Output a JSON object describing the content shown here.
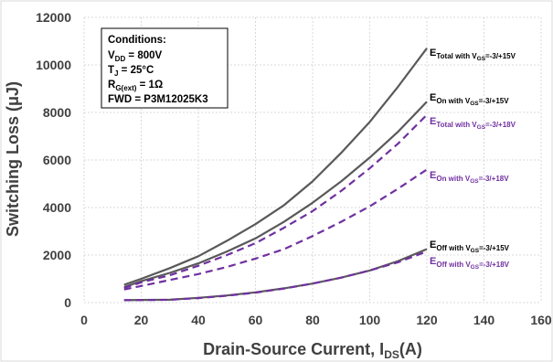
{
  "chart_data": {
    "type": "line",
    "title": "",
    "xlabel": {
      "main": "Drain-Source Current, I",
      "sub": "DS",
      "tail": "(A)"
    },
    "ylabel": "Switching Loss (μJ)",
    "xlim": [
      0,
      160
    ],
    "ylim": [
      0,
      12000
    ],
    "x_ticks": [
      "0",
      "20",
      "40",
      "60",
      "80",
      "100",
      "120",
      "140",
      "160"
    ],
    "y_ticks": [
      "0",
      "2000",
      "4000",
      "6000",
      "8000",
      "10000",
      "12000"
    ],
    "grid": true,
    "colors": {
      "vgs15": "#595959",
      "vgs18": "#7030a0"
    },
    "conditions": {
      "title": "Conditions:",
      "lines": [
        {
          "main": "V",
          "sub": "DD",
          "tail": " = 800V"
        },
        {
          "main": "T",
          "sub": "J",
          "tail": " = 25°C"
        },
        {
          "main": "R",
          "sub": "G(ext)",
          "tail": " = 1Ω"
        },
        {
          "main": "FWD = P3M12025K3",
          "sub": "",
          "tail": ""
        }
      ]
    },
    "series": [
      {
        "name": "E_Total with V_GS=-3/+15V",
        "label": {
          "e": "E",
          "esub": "Total with V",
          "gs": "GS",
          "tail": "=-3/+15V"
        },
        "style": "solid",
        "color_key": "vgs15",
        "x": [
          14,
          20,
          30,
          40,
          50,
          60,
          70,
          80,
          90,
          100,
          110,
          120
        ],
        "y": [
          750,
          1000,
          1450,
          1950,
          2600,
          3300,
          4100,
          5100,
          6300,
          7600,
          9100,
          10700
        ]
      },
      {
        "name": "E_On with V_GS=-3/+15V",
        "label": {
          "e": "E",
          "esub": "On with V",
          "gs": "GS",
          "tail": "=-3/+15V"
        },
        "style": "solid",
        "color_key": "vgs15",
        "x": [
          14,
          20,
          30,
          40,
          50,
          60,
          70,
          80,
          90,
          100,
          110,
          120
        ],
        "y": [
          650,
          900,
          1250,
          1650,
          2150,
          2700,
          3400,
          4200,
          5100,
          6100,
          7200,
          8450
        ]
      },
      {
        "name": "E_Total with V_GS=-3/+18V",
        "label": {
          "e": "E",
          "esub": "Total with V",
          "gs": "GS",
          "tail": "=-3/+18V"
        },
        "style": "dashed",
        "color_key": "vgs18",
        "x": [
          14,
          20,
          30,
          40,
          50,
          60,
          70,
          80,
          90,
          100,
          110,
          120
        ],
        "y": [
          620,
          850,
          1150,
          1550,
          2000,
          2500,
          3150,
          3850,
          4700,
          5650,
          6700,
          7900
        ]
      },
      {
        "name": "E_On with V_GS=-3/+18V",
        "label": {
          "e": "E",
          "esub": "On with V",
          "gs": "GS",
          "tail": "=-3/+18V"
        },
        "style": "dashed",
        "color_key": "vgs18",
        "x": [
          14,
          20,
          30,
          40,
          50,
          60,
          70,
          80,
          90,
          100,
          110,
          120
        ],
        "y": [
          550,
          700,
          950,
          1200,
          1500,
          1850,
          2250,
          2800,
          3400,
          4050,
          4800,
          5600
        ]
      },
      {
        "name": "E_Off with V_GS=-3/+15V",
        "label": {
          "e": "E",
          "esub": "Off with V",
          "gs": "GS",
          "tail": "=-3/+15V"
        },
        "style": "solid",
        "color_key": "vgs15",
        "x": [
          14,
          20,
          30,
          40,
          50,
          60,
          70,
          80,
          90,
          100,
          110,
          120
        ],
        "y": [
          100,
          110,
          120,
          200,
          300,
          430,
          600,
          800,
          1050,
          1350,
          1750,
          2250
        ]
      },
      {
        "name": "E_Off with V_GS=-3/+18V",
        "label": {
          "e": "E",
          "esub": "Off with V",
          "gs": "GS",
          "tail": "=-3/+18V"
        },
        "style": "dashed",
        "color_key": "vgs18",
        "x": [
          14,
          20,
          30,
          40,
          50,
          60,
          70,
          80,
          90,
          100,
          110,
          120
        ],
        "y": [
          100,
          105,
          120,
          190,
          290,
          420,
          590,
          800,
          1050,
          1350,
          1700,
          2150
        ]
      }
    ]
  }
}
